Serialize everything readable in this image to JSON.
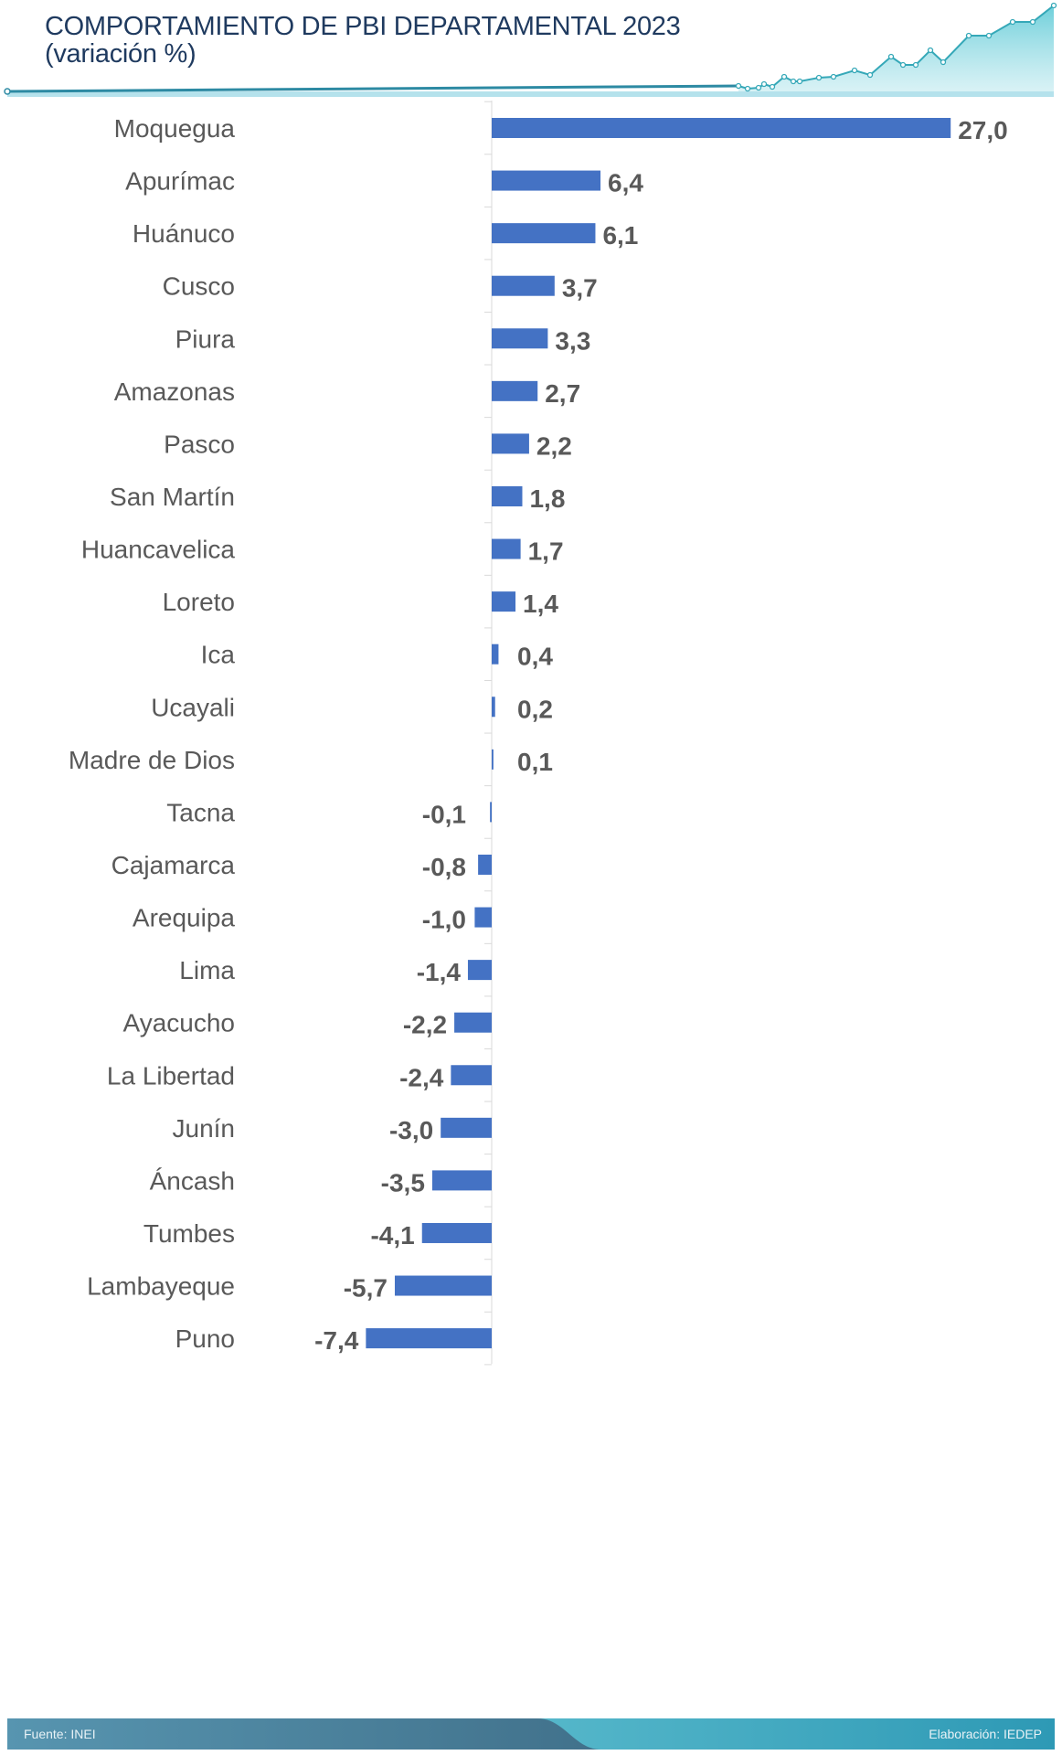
{
  "header": {
    "title_line1": "COMPORTAMIENTO DE PBI DEPARTAMENTAL 2023",
    "title_line2": "(variación %)"
  },
  "chart_data": {
    "type": "bar",
    "orientation": "horizontal",
    "title": "COMPORTAMIENTO DE PBI DEPARTAMENTAL 2023 (variación %)",
    "categories": [
      "Moquegua",
      "Apurímac",
      "Huánuco",
      "Cusco",
      "Piura",
      "Amazonas",
      "Pasco",
      "San Martín",
      "Huancavelica",
      "Loreto",
      "Ica",
      "Ucayali",
      "Madre de Dios",
      "Tacna",
      "Cajamarca",
      "Arequipa",
      "Lima",
      "Ayacucho",
      "La Libertad",
      "Junín",
      "Áncash",
      "Tumbes",
      "Lambayeque",
      "Puno"
    ],
    "values": [
      27.0,
      6.4,
      6.1,
      3.7,
      3.3,
      2.7,
      2.2,
      1.8,
      1.7,
      1.4,
      0.4,
      0.2,
      0.1,
      -0.1,
      -0.8,
      -1.0,
      -1.4,
      -2.2,
      -2.4,
      -3.0,
      -3.5,
      -4.1,
      -5.7,
      -7.4
    ],
    "labels": [
      "27,0",
      "6,4",
      "6,1",
      "3,7",
      "3,3",
      "2,7",
      "2,2",
      "1,8",
      "1,7",
      "1,4",
      "0,4",
      "0,2",
      "0,1",
      "-0,1",
      "-0,8",
      "-1,0",
      "-1,4",
      "-2,2",
      "-2,4",
      "-3,0",
      "-3,5",
      "-4,1",
      "-5,7",
      "-7,4"
    ],
    "bar_color": "#4472c4",
    "grid": false,
    "legend": "none"
  },
  "footer": {
    "source": "Fuente: INEI",
    "credit": "Elaboración: IEDEP"
  }
}
